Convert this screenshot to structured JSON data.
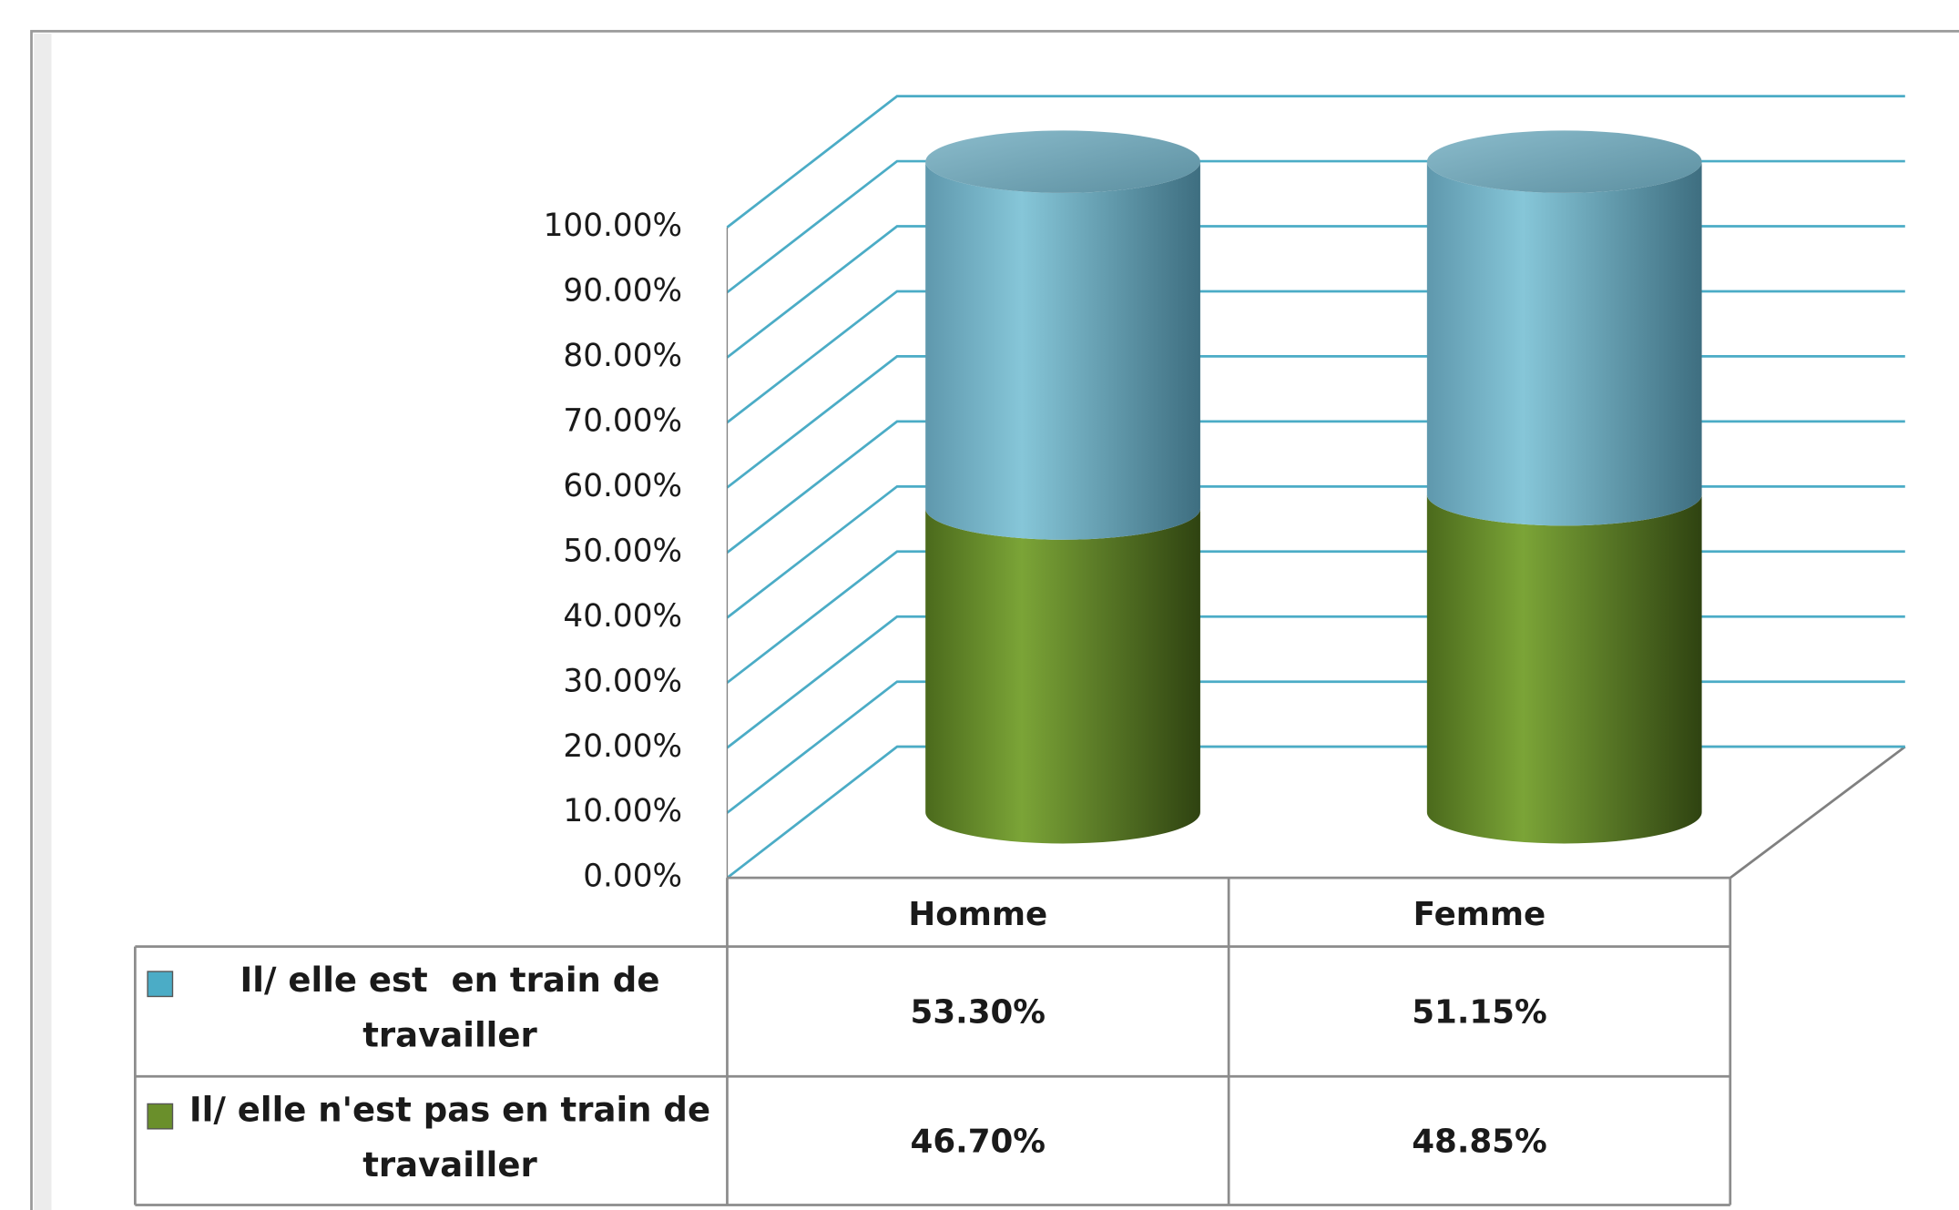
{
  "chart_data": {
    "type": "bar3d_stacked",
    "categories": [
      "Homme",
      "Femme"
    ],
    "series": [
      {
        "name": "Il/ elle est  en train de travailler",
        "color": "#4bacc6",
        "values": [
          53.3,
          51.15
        ],
        "value_labels": [
          "53.30%",
          "51.15%"
        ]
      },
      {
        "name": "Il/ elle n'est pas en train de travailler",
        "color": "#6a8f2b",
        "values": [
          46.7,
          48.85
        ],
        "value_labels": [
          "46.70%",
          "48.85%"
        ]
      }
    ],
    "ylim": [
      0,
      100
    ],
    "yticks": [
      {
        "value": 0,
        "label": "0.00%"
      },
      {
        "value": 10,
        "label": "10.00%"
      },
      {
        "value": 20,
        "label": "20.00%"
      },
      {
        "value": 30,
        "label": "30.00%"
      },
      {
        "value": 40,
        "label": "40.00%"
      },
      {
        "value": 50,
        "label": "50.00%"
      },
      {
        "value": 60,
        "label": "60.00%"
      },
      {
        "value": 70,
        "label": "70.00%"
      },
      {
        "value": 80,
        "label": "80.00%"
      },
      {
        "value": 90,
        "label": "90.00%"
      },
      {
        "value": 100,
        "label": "100.00%"
      }
    ],
    "grid": true
  }
}
